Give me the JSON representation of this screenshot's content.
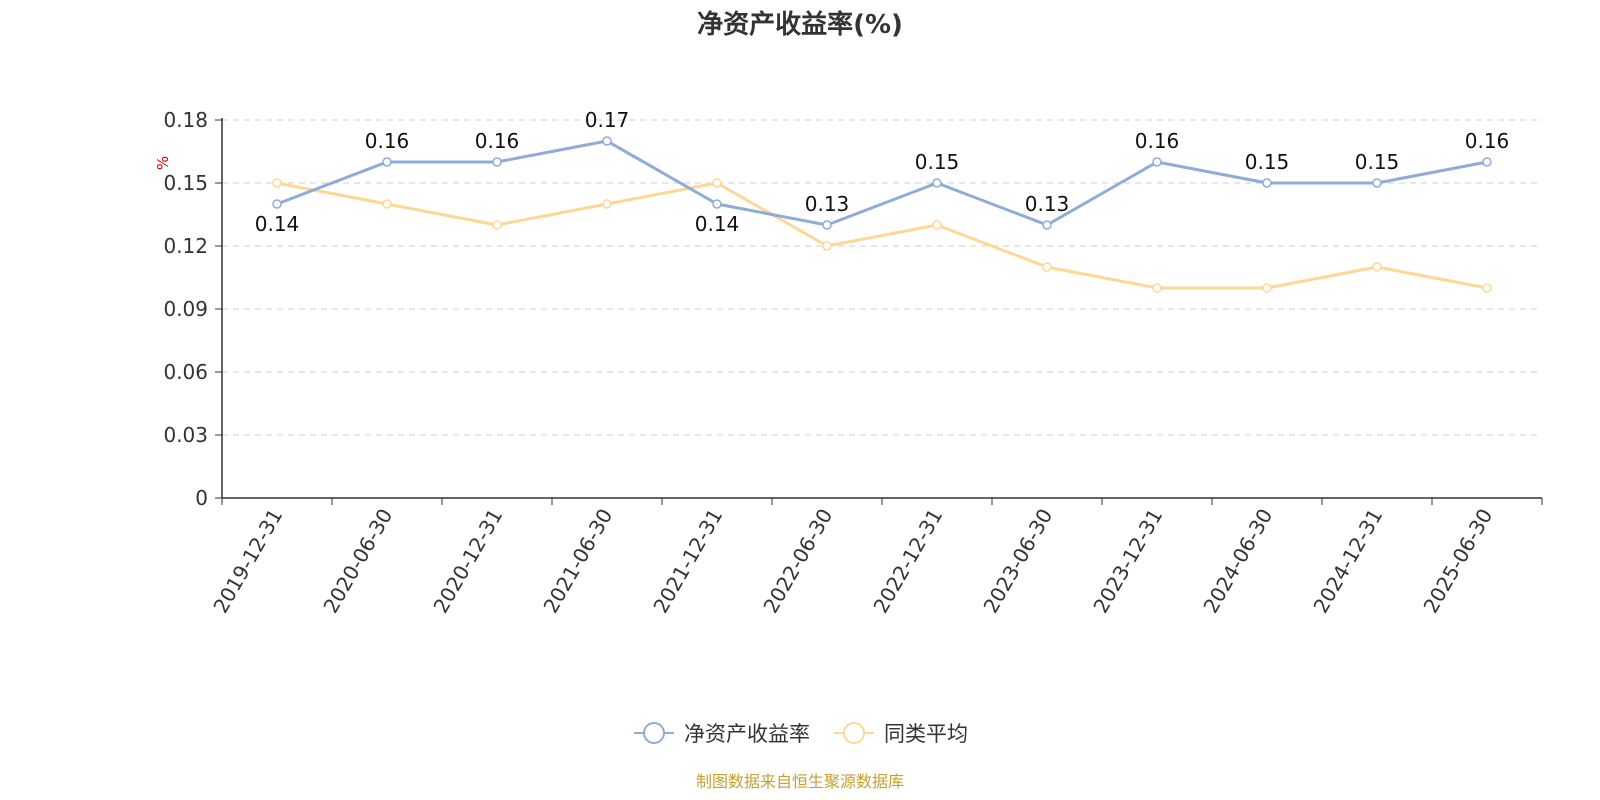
{
  "title": "净资产收益率(%)",
  "footer": "制图数据来自恒生聚源数据库",
  "colors": {
    "series1": "#8eacd8",
    "series2": "#fdd795",
    "unit": "#dd0000",
    "footer": "#c8a030",
    "axis": "#333333",
    "grid": "#cccccc"
  },
  "legend": [
    {
      "name": "净资产收益率"
    },
    {
      "name": "同类平均"
    }
  ],
  "chart_data": {
    "type": "line",
    "title": "净资产收益率(%)",
    "ylabel": "%",
    "ylim": [
      0,
      0.18
    ],
    "yticks": [
      "0",
      "0.03",
      "0.06",
      "0.09",
      "0.12",
      "0.15",
      "0.18"
    ],
    "grid": true,
    "legend_position": "bottom",
    "categories": [
      "2019-12-31",
      "2020-06-30",
      "2020-12-31",
      "2021-06-30",
      "2021-12-31",
      "2022-06-30",
      "2022-12-31",
      "2023-06-30",
      "2023-12-31",
      "2024-06-30",
      "2024-12-31",
      "2025-06-30"
    ],
    "series": [
      {
        "name": "净资产收益率",
        "values": [
          0.14,
          0.16,
          0.16,
          0.17,
          0.14,
          0.13,
          0.15,
          0.13,
          0.16,
          0.15,
          0.15,
          0.16
        ],
        "labels": [
          "0.14",
          "0.16",
          "0.16",
          "0.17",
          "0.14",
          "0.13",
          "0.15",
          "0.13",
          "0.16",
          "0.15",
          "0.15",
          "0.16"
        ]
      },
      {
        "name": "同类平均",
        "values": [
          0.15,
          0.14,
          0.13,
          0.14,
          0.15,
          0.12,
          0.13,
          0.11,
          0.1,
          0.1,
          0.11,
          0.1
        ]
      }
    ]
  }
}
